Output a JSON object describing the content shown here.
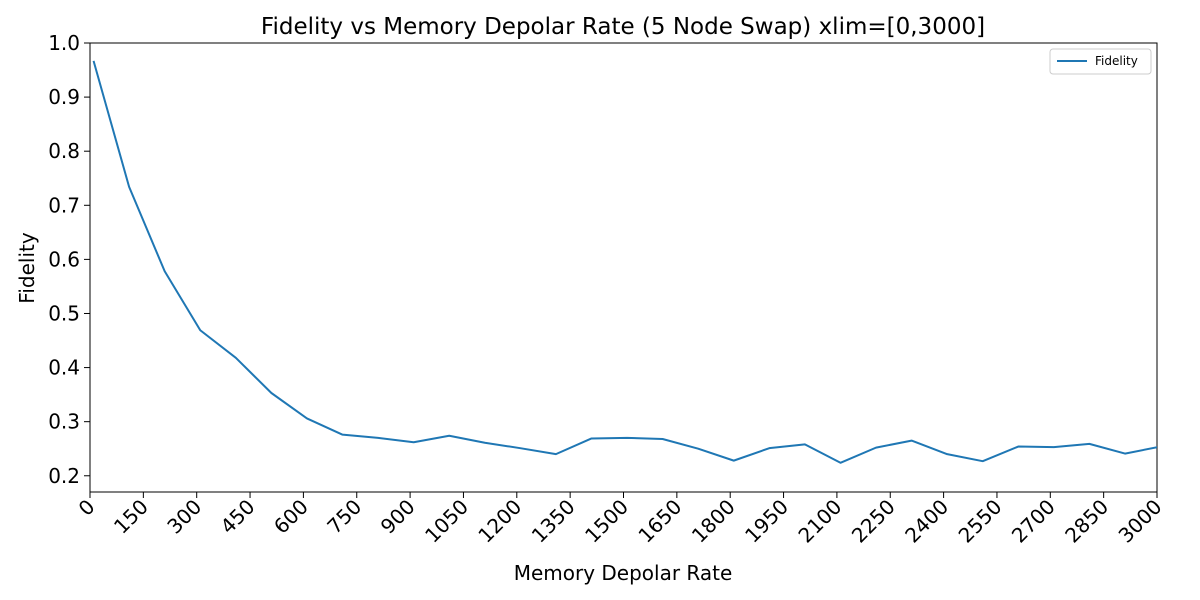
{
  "chart_data": {
    "type": "line",
    "title": "Fidelity vs Memory Depolar Rate (5 Node Swap) xlim=[0,3000]",
    "xlabel": "Memory Depolar Rate",
    "ylabel": "Fidelity",
    "xlim": [
      0,
      3000
    ],
    "ylim": [
      0.17,
      1.0
    ],
    "x_ticks": [
      0,
      150,
      300,
      450,
      600,
      750,
      900,
      1050,
      1200,
      1350,
      1500,
      1650,
      1800,
      1950,
      2100,
      2250,
      2400,
      2550,
      2700,
      2850,
      3000
    ],
    "y_ticks": [
      0.2,
      0.3,
      0.4,
      0.5,
      0.6,
      0.7,
      0.8,
      0.9,
      1.0
    ],
    "x_tick_labels": [
      "0",
      "150",
      "300",
      "450",
      "600",
      "750",
      "900",
      "1050",
      "1200",
      "1350",
      "1500",
      "1650",
      "1800",
      "1950",
      "2100",
      "2250",
      "2400",
      "2550",
      "2700",
      "2850",
      "3000"
    ],
    "y_tick_labels": [
      "0.2",
      "0.3",
      "0.4",
      "0.5",
      "0.6",
      "0.7",
      "0.8",
      "0.9",
      "1.0"
    ],
    "grid": false,
    "legend_position": "top-right",
    "series": [
      {
        "name": "Fidelity",
        "color": "#1f77b4",
        "x": [
          10,
          110,
          210,
          310,
          410,
          510,
          610,
          710,
          810,
          910,
          1010,
          1110,
          1210,
          1310,
          1410,
          1510,
          1610,
          1710,
          1810,
          1910,
          2010,
          2110,
          2210,
          2310,
          2410,
          2510,
          2610,
          2710,
          2810,
          2910,
          3010
        ],
        "y": [
          0.967,
          0.734,
          0.578,
          0.469,
          0.418,
          0.353,
          0.306,
          0.276,
          0.27,
          0.262,
          0.274,
          0.261,
          0.251,
          0.24,
          0.269,
          0.27,
          0.268,
          0.25,
          0.228,
          0.251,
          0.258,
          0.224,
          0.252,
          0.265,
          0.24,
          0.227,
          0.254,
          0.253,
          0.259,
          0.241,
          0.254
        ]
      }
    ]
  }
}
